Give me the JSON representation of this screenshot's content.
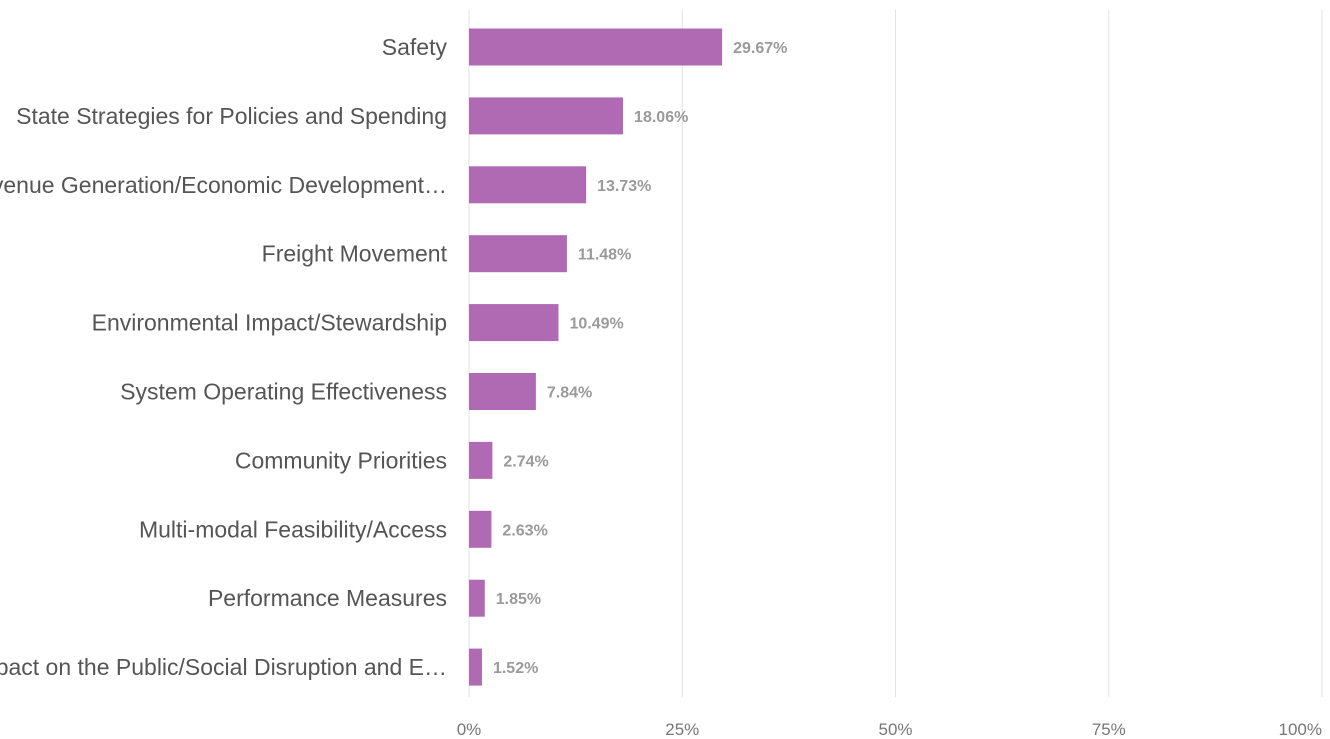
{
  "chart_data": {
    "type": "bar",
    "orientation": "horizontal",
    "title": "",
    "xlabel": "",
    "ylabel": "",
    "categories": [
      "Safety",
      "State Strategies for Policies and Spending",
      "Revenue Generation/Economic Development…",
      "Freight Movement",
      "Environmental Impact/Stewardship",
      "System Operating Effectiveness",
      "Community Priorities",
      "Multi-modal Feasibility/Access",
      "Performance Measures",
      "Impact on the Public/Social Disruption and E…"
    ],
    "values": [
      29.67,
      18.06,
      13.73,
      11.48,
      10.49,
      7.84,
      2.74,
      2.63,
      1.85,
      1.52
    ],
    "value_labels": [
      "29.67%",
      "18.06%",
      "13.73%",
      "11.48%",
      "10.49%",
      "7.84%",
      "2.74%",
      "2.63%",
      "1.85%",
      "1.52%"
    ],
    "xlim": [
      0,
      100
    ],
    "ticks": [
      0,
      25,
      50,
      75,
      100
    ],
    "tick_labels": [
      "0%",
      "25%",
      "50%",
      "75%",
      "100%"
    ],
    "grid": true,
    "bar_color": "#b06ab3",
    "legend": "none"
  }
}
